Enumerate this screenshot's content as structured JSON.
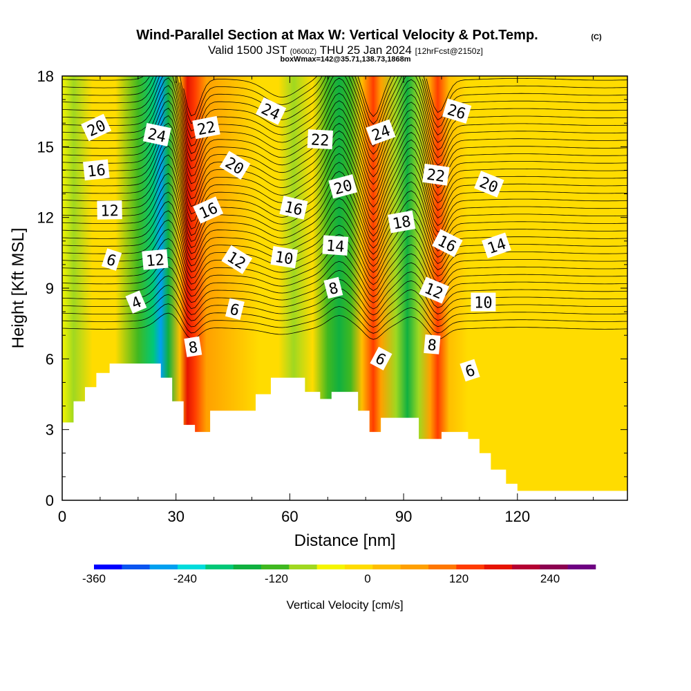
{
  "title": {
    "main": "Wind-Parallel Section at Max W: Vertical Velocity & Pot.Temp.",
    "copyright": "(C)",
    "valid_prefix": "Valid 1500 JST",
    "valid_utc": "(0600Z)",
    "valid_date": "THU 25 Jan 2024",
    "forecast": "[12hrFcst@2150z]",
    "boxinfo": "boxWmax=142@35.71,138.73,1868m"
  },
  "chart_data": {
    "type": "heatmap",
    "xlabel": "Distance [nm]",
    "ylabel": "Height [Kft MSL]",
    "xlim": [
      0,
      149
    ],
    "ylim": [
      0,
      18
    ],
    "x_ticks": [
      0,
      30,
      60,
      90,
      120
    ],
    "y_ticks": [
      0,
      3,
      6,
      9,
      12,
      15,
      18
    ],
    "grid": false,
    "colorbar": {
      "label": "Vertical Velocity [cm/s]",
      "tick_values": [
        -360,
        -240,
        -120,
        0,
        120,
        240
      ],
      "tick_labels": [
        "-360",
        "-240",
        "-120",
        "0",
        "120",
        "240"
      ],
      "range": [
        -360,
        300
      ],
      "step": 40,
      "colors": [
        "#0000ff",
        "#0a55f0",
        "#00a0f0",
        "#00dcdc",
        "#00c878",
        "#10b040",
        "#40b820",
        "#a0d820",
        "#f5f500",
        "#ffdc00",
        "#ffbe00",
        "#ffa000",
        "#ff7800",
        "#ff3c00",
        "#e61400",
        "#b40032",
        "#8c0050",
        "#6e0082"
      ]
    },
    "vertical_velocity_bands": [
      {
        "x": 0,
        "value": -40
      },
      {
        "x": 3,
        "value": -80
      },
      {
        "x": 8,
        "value": 10
      },
      {
        "x": 14,
        "value": 25
      },
      {
        "x": 20,
        "value": -110
      },
      {
        "x": 24,
        "value": -200
      },
      {
        "x": 26,
        "value": -270
      },
      {
        "x": 28,
        "value": -150
      },
      {
        "x": 31,
        "value": 60
      },
      {
        "x": 33,
        "value": 220
      },
      {
        "x": 35,
        "value": 170
      },
      {
        "x": 38,
        "value": 90
      },
      {
        "x": 45,
        "value": 40
      },
      {
        "x": 52,
        "value": 25
      },
      {
        "x": 57,
        "value": 20
      },
      {
        "x": 61,
        "value": -50
      },
      {
        "x": 66,
        "value": 30
      },
      {
        "x": 70,
        "value": -90
      },
      {
        "x": 73,
        "value": -160
      },
      {
        "x": 76,
        "value": -110
      },
      {
        "x": 79,
        "value": 40
      },
      {
        "x": 82,
        "value": 180
      },
      {
        "x": 84,
        "value": 100
      },
      {
        "x": 88,
        "value": -60
      },
      {
        "x": 91,
        "value": -150
      },
      {
        "x": 94,
        "value": -60
      },
      {
        "x": 97,
        "value": 80
      },
      {
        "x": 99,
        "value": 170
      },
      {
        "x": 102,
        "value": 60
      },
      {
        "x": 107,
        "value": 30
      },
      {
        "x": 116,
        "value": 25
      },
      {
        "x": 125,
        "value": 15
      },
      {
        "x": 140,
        "value": 10
      },
      {
        "x": 149,
        "value": 10
      }
    ],
    "theta_contours": {
      "label_values": [
        4,
        6,
        8,
        10,
        12,
        14,
        16,
        18,
        20,
        22,
        24,
        26
      ]
    },
    "theta_labels": [
      {
        "text": "20",
        "x": 9,
        "y": 15.8
      },
      {
        "text": "24",
        "x": 25,
        "y": 15.5
      },
      {
        "text": "22",
        "x": 38,
        "y": 15.8
      },
      {
        "text": "24",
        "x": 55,
        "y": 16.5
      },
      {
        "text": "22",
        "x": 68,
        "y": 15.3
      },
      {
        "text": "24",
        "x": 84,
        "y": 15.6
      },
      {
        "text": "26",
        "x": 104,
        "y": 16.5
      },
      {
        "text": "16",
        "x": 9,
        "y": 14.0
      },
      {
        "text": "20",
        "x": 45.5,
        "y": 14.2
      },
      {
        "text": "22",
        "x": 98.5,
        "y": 13.8
      },
      {
        "text": "20",
        "x": 74,
        "y": 13.3
      },
      {
        "text": "20",
        "x": 112.5,
        "y": 13.4
      },
      {
        "text": "12",
        "x": 12.5,
        "y": 12.3
      },
      {
        "text": "16",
        "x": 38.5,
        "y": 12.3
      },
      {
        "text": "16",
        "x": 61,
        "y": 12.4
      },
      {
        "text": "18",
        "x": 89.5,
        "y": 11.8
      },
      {
        "text": "16",
        "x": 101.5,
        "y": 10.9
      },
      {
        "text": "14",
        "x": 72,
        "y": 10.8
      },
      {
        "text": "14",
        "x": 114.5,
        "y": 10.8
      },
      {
        "text": "6",
        "x": 13,
        "y": 10.2
      },
      {
        "text": "12",
        "x": 24.5,
        "y": 10.2
      },
      {
        "text": "12",
        "x": 46,
        "y": 10.2
      },
      {
        "text": "10",
        "x": 58.5,
        "y": 10.3
      },
      {
        "text": "8",
        "x": 71.5,
        "y": 9.0
      },
      {
        "text": "12",
        "x": 98,
        "y": 8.9
      },
      {
        "text": "10",
        "x": 111,
        "y": 8.4
      },
      {
        "text": "4",
        "x": 19.5,
        "y": 8.4
      },
      {
        "text": "6",
        "x": 45.5,
        "y": 8.1
      },
      {
        "text": "8",
        "x": 34.5,
        "y": 6.5
      },
      {
        "text": "6",
        "x": 84,
        "y": 6.0
      },
      {
        "text": "8",
        "x": 97.5,
        "y": 6.6
      },
      {
        "text": "6",
        "x": 107.5,
        "y": 5.5
      }
    ],
    "terrain_height_profile": [
      {
        "x": 0,
        "h": 3.3
      },
      {
        "x": 3,
        "h": 4.2
      },
      {
        "x": 6,
        "h": 4.8
      },
      {
        "x": 9,
        "h": 5.4
      },
      {
        "x": 12.5,
        "h": 5.8
      },
      {
        "x": 26,
        "h": 5.2
      },
      {
        "x": 29,
        "h": 4.2
      },
      {
        "x": 32,
        "h": 3.2
      },
      {
        "x": 35,
        "h": 2.9
      },
      {
        "x": 39,
        "h": 3.8
      },
      {
        "x": 47,
        "h": 3.8
      },
      {
        "x": 51,
        "h": 4.5
      },
      {
        "x": 55,
        "h": 5.2
      },
      {
        "x": 64,
        "h": 4.6
      },
      {
        "x": 68,
        "h": 4.3
      },
      {
        "x": 71,
        "h": 4.6
      },
      {
        "x": 78,
        "h": 3.8
      },
      {
        "x": 81,
        "h": 2.9
      },
      {
        "x": 84,
        "h": 3.5
      },
      {
        "x": 94,
        "h": 2.6
      },
      {
        "x": 100,
        "h": 2.9
      },
      {
        "x": 107,
        "h": 2.6
      },
      {
        "x": 110,
        "h": 2.0
      },
      {
        "x": 113,
        "h": 1.3
      },
      {
        "x": 117,
        "h": 0.7
      },
      {
        "x": 120,
        "h": 0.4
      },
      {
        "x": 149,
        "h": 0.4
      }
    ]
  }
}
